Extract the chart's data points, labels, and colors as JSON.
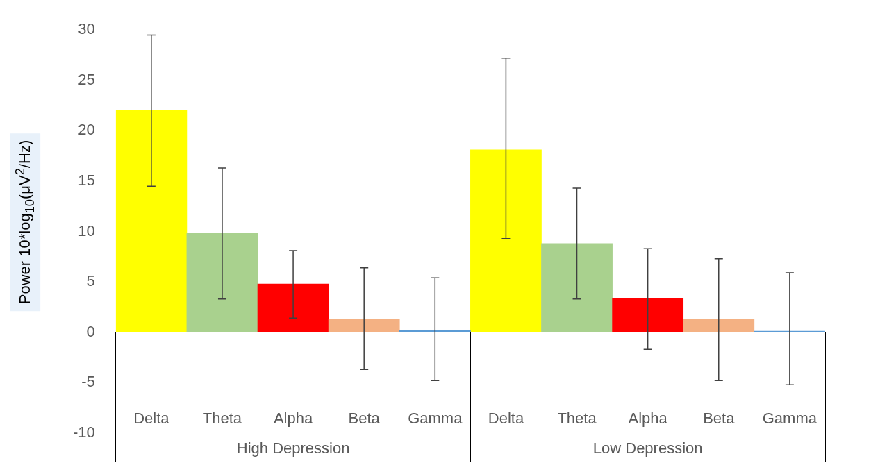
{
  "chart_data": {
    "type": "bar",
    "ylabel": "Power 10*log$_{10}$(μV$^{2}$/Hz)",
    "categories": [
      "Delta",
      "Theta",
      "Alpha",
      "Beta",
      "Gamma",
      "Delta",
      "Theta",
      "Alpha",
      "Beta",
      "Gamma"
    ],
    "series": [
      {
        "colors": [
          "#ffff00",
          "#a9d18e",
          "#ff0000",
          "#f4b183",
          "#5b9bd5",
          null,
          null,
          null,
          null,
          null
        ],
        "values": [
          22.0,
          9.8,
          4.8,
          1.3,
          0.2,
          null,
          null,
          null,
          null,
          null
        ],
        "errors": [
          [
            14.5,
            29.5
          ],
          [
            3.3,
            16.3
          ],
          [
            1.4,
            8.1
          ],
          [
            -3.7,
            6.4
          ],
          [
            -4.8,
            5.4
          ],
          null,
          null,
          null,
          null,
          null
        ]
      },
      {
        "colors": [
          null,
          null,
          null,
          null,
          null,
          "#ffff00",
          "#a9d18e",
          "#ff0000",
          "#f4b183",
          "#5b9bd5"
        ],
        "values": [
          null,
          null,
          null,
          null,
          null,
          18.1,
          8.8,
          3.4,
          1.3,
          0.1
        ],
        "errors": [
          null,
          null,
          null,
          null,
          null,
          [
            9.3,
            27.2
          ],
          [
            3.3,
            14.3
          ],
          [
            -1.7,
            8.3
          ],
          [
            -4.8,
            7.3
          ],
          [
            -5.2,
            5.9
          ]
        ]
      }
    ],
    "ylim": [
      -10,
      30
    ],
    "yticks": [
      -10,
      -5,
      0,
      5,
      10,
      15,
      20,
      25,
      30
    ],
    "legend": false,
    "annotations": [
      "High Depression",
      "Low Depression"
    ]
  }
}
